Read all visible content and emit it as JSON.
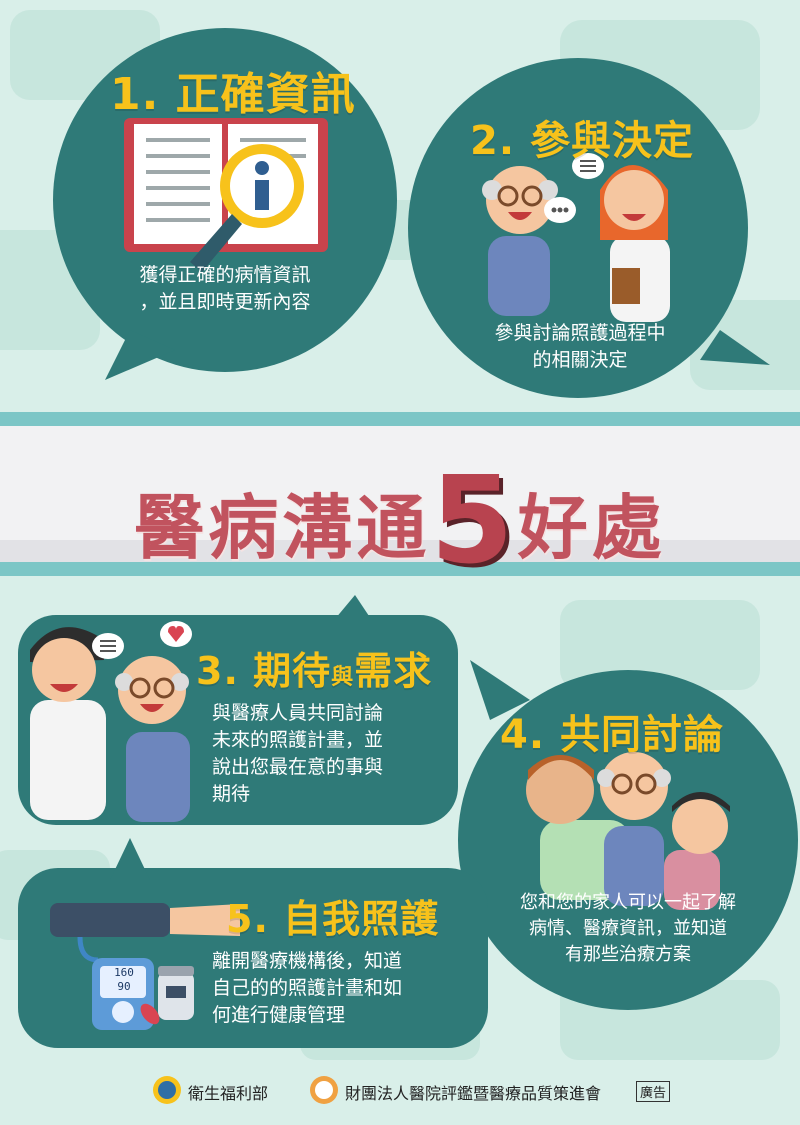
{
  "poster": {
    "title_prefix": "醫病溝通",
    "title_number": "5",
    "title_suffix": "好處"
  },
  "sections": [
    {
      "number": "1.",
      "title": "正確資訊",
      "lines": [
        "獲得正確的病情資訊",
        "，並且即時更新內容"
      ]
    },
    {
      "number": "2.",
      "title": "參與決定",
      "lines": [
        "參與討論照護過程中",
        "的相關決定"
      ]
    },
    {
      "number": "3.",
      "title_a": "期待",
      "title_small": "與",
      "title_b": "需求",
      "lines": [
        "與醫療人員共同討論",
        "未來的照護計畫，並",
        "說出您最在意的事與",
        "期待"
      ]
    },
    {
      "number": "4.",
      "title": "共同討論",
      "lines": [
        "您和您的家人可以一起了解",
        "病情、醫療資訊，並知道",
        "有那些治療方案"
      ]
    },
    {
      "number": "5.",
      "title": "自我照護",
      "lines": [
        "離開醫療機構後，知道",
        "自己的的照護計畫和如",
        "何進行健康管理"
      ]
    }
  ],
  "bp_monitor": {
    "systolic": "160",
    "diastolic": "90"
  },
  "footer": {
    "ministry": "衛生福利部",
    "foundation": "財團法人醫院評鑑暨醫療品質策進會",
    "ad_tag": "廣告"
  },
  "colors": {
    "background": "#d9efe9",
    "bubble": "#2f7a78",
    "heading": "#f7c21b",
    "title": "#c1535e"
  }
}
